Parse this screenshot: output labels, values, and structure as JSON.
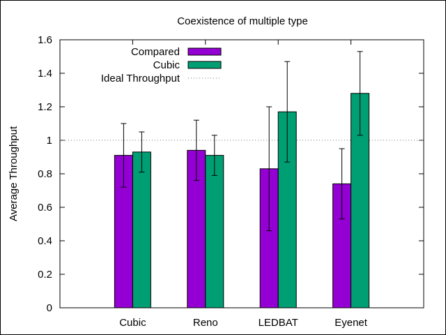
{
  "chart_data": {
    "type": "bar",
    "title": "Coexistence of multiple type",
    "xlabel": "",
    "ylabel": "Average Throughput",
    "categories": [
      "Cubic",
      "Reno",
      "LEDBAT",
      "Eyenet"
    ],
    "ylim": [
      0,
      1.6
    ],
    "yticks": [
      "0",
      "0.2",
      "0.4",
      "0.6",
      "0.8",
      "1",
      "1.2",
      "1.4",
      "1.6"
    ],
    "series": [
      {
        "name": "Compared",
        "color": "#9400d3",
        "values": [
          0.91,
          0.94,
          0.83,
          0.74
        ],
        "error_low": [
          0.72,
          0.76,
          0.46,
          0.53
        ],
        "error_high": [
          1.1,
          1.12,
          1.2,
          0.95
        ]
      },
      {
        "name": "Cubic",
        "color": "#009e73",
        "values": [
          0.93,
          0.91,
          1.17,
          1.28
        ],
        "error_low": [
          0.81,
          0.79,
          0.87,
          1.03
        ],
        "error_high": [
          1.05,
          1.03,
          1.47,
          1.53
        ]
      }
    ],
    "reference_line": {
      "name": "Ideal Throughput",
      "y": 1.0,
      "style": "dotted"
    },
    "legend": "top-left",
    "grid": false
  }
}
